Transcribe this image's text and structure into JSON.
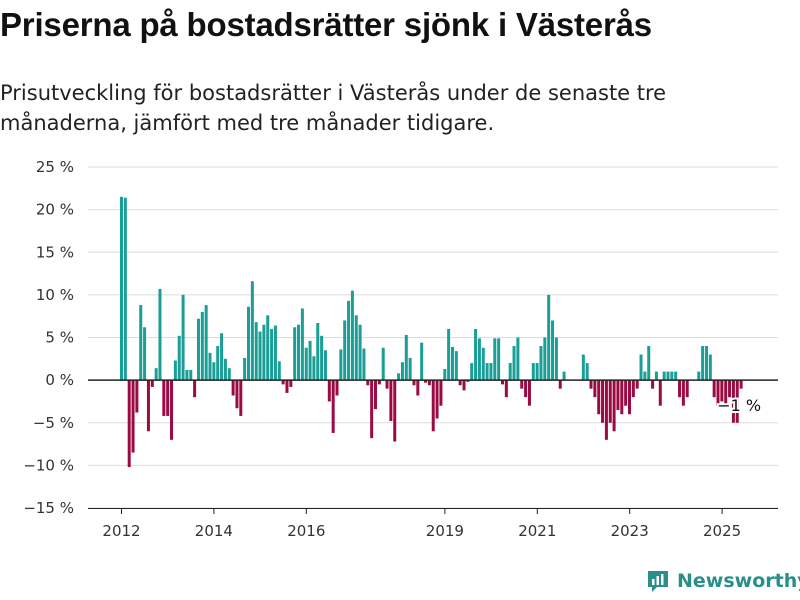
{
  "title": "Priserna på bostadsrätter sjönk i Västerås",
  "subtitle": "Prisutveckling för bostadsrätter i Västerås under de senaste tre månaderna, jämfört med tre månader tidigare.",
  "brand": {
    "name": "Newsworthy",
    "icon": "newsworthy-logo-icon"
  },
  "colors": {
    "positive": "#1a9e96",
    "negative": "#9b0b43",
    "grid": "#dcdcdc",
    "zero": "#222222"
  },
  "chart_data": {
    "type": "bar",
    "title": "Priserna på bostadsrätter sjönk i Västerås",
    "xlabel": "",
    "ylabel": "",
    "ylim": [
      -15,
      25
    ],
    "yticks": [
      25,
      20,
      15,
      10,
      5,
      0,
      -5,
      -10,
      -15
    ],
    "ytick_labels": [
      "25 %",
      "20 %",
      "15 %",
      "10 %",
      "5 %",
      "0 %",
      "−5 %",
      "−10 %",
      "−15 %"
    ],
    "xticks": [
      2012,
      2014,
      2016,
      2019,
      2021,
      2023,
      2025
    ],
    "xtick_labels": [
      "2012",
      "2014",
      "2016",
      "2019",
      "2021",
      "2023",
      "2025"
    ],
    "x_start": 2012.0,
    "x_step": 0.0833,
    "grid": true,
    "annotation": "−1 %",
    "values": [
      21.5,
      21.4,
      -10.2,
      -8.5,
      -3.8,
      8.8,
      6.2,
      -6.0,
      -0.8,
      1.4,
      10.7,
      -4.2,
      -4.2,
      -7.0,
      2.3,
      5.2,
      10.0,
      1.2,
      1.2,
      -2.0,
      7.2,
      8.0,
      8.8,
      3.2,
      2.1,
      4.0,
      5.5,
      2.5,
      1.4,
      -1.8,
      -3.3,
      -4.2,
      2.6,
      8.6,
      11.6,
      6.8,
      5.7,
      6.5,
      7.6,
      6.0,
      6.4,
      2.2,
      -0.5,
      -1.5,
      -0.8,
      6.2,
      6.5,
      8.4,
      3.8,
      4.6,
      2.8,
      6.7,
      5.2,
      3.5,
      -2.5,
      -6.2,
      -1.8,
      3.6,
      7.0,
      9.3,
      10.5,
      7.6,
      6.5,
      3.7,
      -0.6,
      -6.8,
      -3.4,
      -0.5,
      3.8,
      -1.0,
      -4.8,
      -7.2,
      0.8,
      2.1,
      5.3,
      2.6,
      -0.6,
      -1.8,
      4.4,
      -0.3,
      -0.6,
      -6.0,
      -4.5,
      -3.0,
      1.3,
      6.0,
      3.9,
      3.4,
      -0.6,
      -1.2,
      -0.2,
      2.0,
      6.0,
      4.9,
      3.8,
      2.0,
      2.0,
      4.9,
      4.9,
      -0.5,
      -2.0,
      2.0,
      4.0,
      5.0,
      -1.0,
      -2.0,
      -3.0,
      2.0,
      2.0,
      4.0,
      5.0,
      10.0,
      7.0,
      5.0,
      -1.0,
      1.0,
      0.0,
      0.0,
      0.0,
      0.0,
      3.0,
      2.0,
      -1.0,
      -2.0,
      -4.0,
      -5.0,
      -7.0,
      -5.0,
      -6.0,
      -3.5,
      -4.0,
      -3.0,
      -4.0,
      -2.0,
      -1.0,
      3.0,
      1.0,
      4.0,
      -1.0,
      1.0,
      -3.0,
      1.0,
      1.0,
      1.0,
      1.0,
      -2.0,
      -3.0,
      -2.0,
      0.0,
      0.0,
      1.0,
      4.0,
      4.0,
      3.0,
      -2.0,
      -3.0,
      -2.5,
      -3.0,
      -2.0,
      -5.0,
      -5.0,
      -1.0
    ]
  }
}
